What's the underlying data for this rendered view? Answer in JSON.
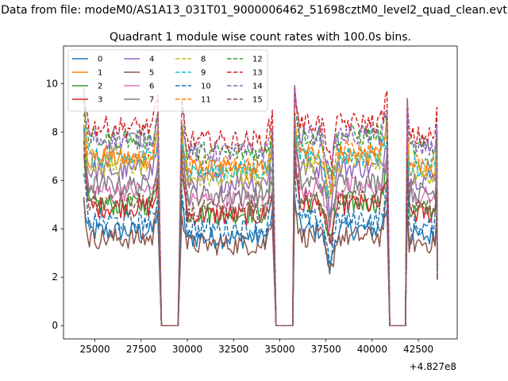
{
  "figure": {
    "suptitle": "Data from file: modeM0/AS1A13_031T01_9000006462_51698cztM0_level2_quad_clean.evt"
  },
  "chart_data": {
    "type": "line",
    "title": "Quadrant 1 module wise count rates with 100.0s bins.",
    "xlabel": "",
    "ylabel": "",
    "x_offset_label": "+4.827e8",
    "xlim": [
      23300,
      44600
    ],
    "ylim": [
      -0.55,
      11.55
    ],
    "xticks": [
      25000,
      27500,
      30000,
      32500,
      35000,
      37500,
      40000,
      42500
    ],
    "yticks": [
      0,
      2,
      4,
      6,
      8,
      10
    ],
    "grid": false,
    "legend": {
      "position": "top-left",
      "ncol": 4
    },
    "segments": [
      {
        "x": [
          24400,
          28400
        ],
        "level_scale": 1.0
      },
      {
        "x": [
          29700,
          34600
        ],
        "level_scale": 0.93
      },
      {
        "x": [
          35800,
          40800
        ],
        "level_scale": 1.02
      },
      {
        "x": [
          41900,
          43500
        ],
        "level_scale": 0.95
      }
    ],
    "gaps": [
      {
        "x": [
          28600,
          29500
        ],
        "value": 0
      },
      {
        "x": [
          34800,
          35700
        ],
        "value": 0
      },
      {
        "x": [
          40950,
          41800
        ],
        "value": 0
      }
    ],
    "series": [
      {
        "name": "0",
        "color": "#1f77b4",
        "dash": false,
        "level": 3.9
      },
      {
        "name": "1",
        "color": "#ff7f0e",
        "dash": false,
        "level": 6.9
      },
      {
        "name": "2",
        "color": "#2ca02c",
        "dash": false,
        "level": 5.0
      },
      {
        "name": "3",
        "color": "#d62728",
        "dash": false,
        "level": 4.9
      },
      {
        "name": "4",
        "color": "#9467bd",
        "dash": false,
        "level": 6.4
      },
      {
        "name": "5",
        "color": "#8c564b",
        "dash": false,
        "level": 3.6
      },
      {
        "name": "6",
        "color": "#e377c2",
        "dash": false,
        "level": 5.6
      },
      {
        "name": "7",
        "color": "#7f7f7f",
        "dash": false,
        "level": 5.8
      },
      {
        "name": "8",
        "color": "#bcbd22",
        "dash": true,
        "level": 6.6
      },
      {
        "name": "9",
        "color": "#17becf",
        "dash": true,
        "level": 6.9
      },
      {
        "name": "10",
        "color": "#1f77b4",
        "dash": true,
        "level": 4.3
      },
      {
        "name": "11",
        "color": "#ff7f0e",
        "dash": true,
        "level": 7.1
      },
      {
        "name": "12",
        "color": "#2ca02c",
        "dash": true,
        "level": 7.7
      },
      {
        "name": "13",
        "color": "#d62728",
        "dash": true,
        "level": 8.2
      },
      {
        "name": "14",
        "color": "#9467bd",
        "dash": true,
        "level": 7.7
      },
      {
        "name": "15",
        "color": "#8c564b",
        "dash": true,
        "level": 5.1
      }
    ]
  }
}
